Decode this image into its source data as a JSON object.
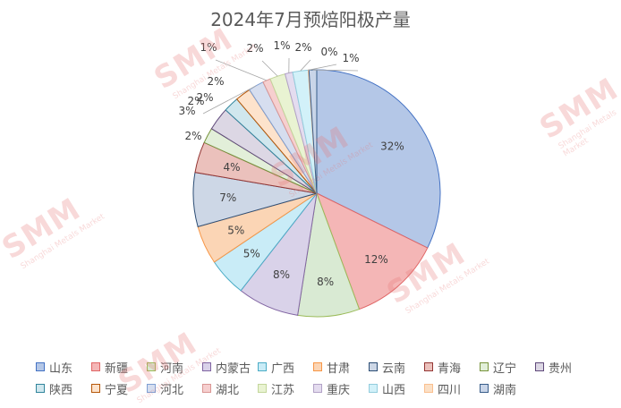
{
  "chart_data": {
    "type": "pie",
    "title": "2024年7月预焙阳极产量",
    "categories": [
      "山东",
      "新疆",
      "河南",
      "内蒙古",
      "广西",
      "甘肃",
      "云南",
      "青海",
      "辽宁",
      "贵州",
      "陕西",
      "宁夏",
      "河北",
      "湖北",
      "江苏",
      "重庆",
      "山西",
      "四川",
      "湖南"
    ],
    "values": [
      32,
      12,
      8,
      8,
      5,
      5,
      7,
      4,
      2,
      3,
      2,
      2,
      2,
      1,
      2,
      1,
      2,
      0,
      1
    ],
    "labels": [
      "32%",
      "12%",
      "8%",
      "8%",
      "5%",
      "5%",
      "7%",
      "4%",
      "2%",
      "3%",
      "2%",
      "2%",
      "2%",
      "1%",
      "2%",
      "1%",
      "2%",
      "0%",
      "1%"
    ],
    "colors": [
      "#b4c7e7",
      "#f4b6b6",
      "#d9ead3",
      "#d9d2e9",
      "#c9ecf7",
      "#fbd5b5",
      "#cdd7e6",
      "#ebc1bc",
      "#e2efd9",
      "#dcd7e4",
      "#d0e7ee",
      "#fde3cc",
      "#d6deef",
      "#f6cfcf",
      "#e9f3d2",
      "#e4dcef",
      "#d2f1f9",
      "#fbe0c6",
      "#c9d5e8"
    ],
    "borders": [
      "#4472c4",
      "#e06666",
      "#9bbb59",
      "#8064a2",
      "#4bacc6",
      "#f79646",
      "#2c4d75",
      "#943634",
      "#77933c",
      "#5f497a",
      "#31859c",
      "#b65708",
      "#7f9fd3",
      "#da9694",
      "#c3d69b",
      "#b2a2c7",
      "#93cddd",
      "#fabf8f",
      "#385d8a"
    ],
    "legend_position": "bottom"
  },
  "watermark": {
    "brand": "SMM",
    "tagline": "Shanghai Metals Market"
  }
}
